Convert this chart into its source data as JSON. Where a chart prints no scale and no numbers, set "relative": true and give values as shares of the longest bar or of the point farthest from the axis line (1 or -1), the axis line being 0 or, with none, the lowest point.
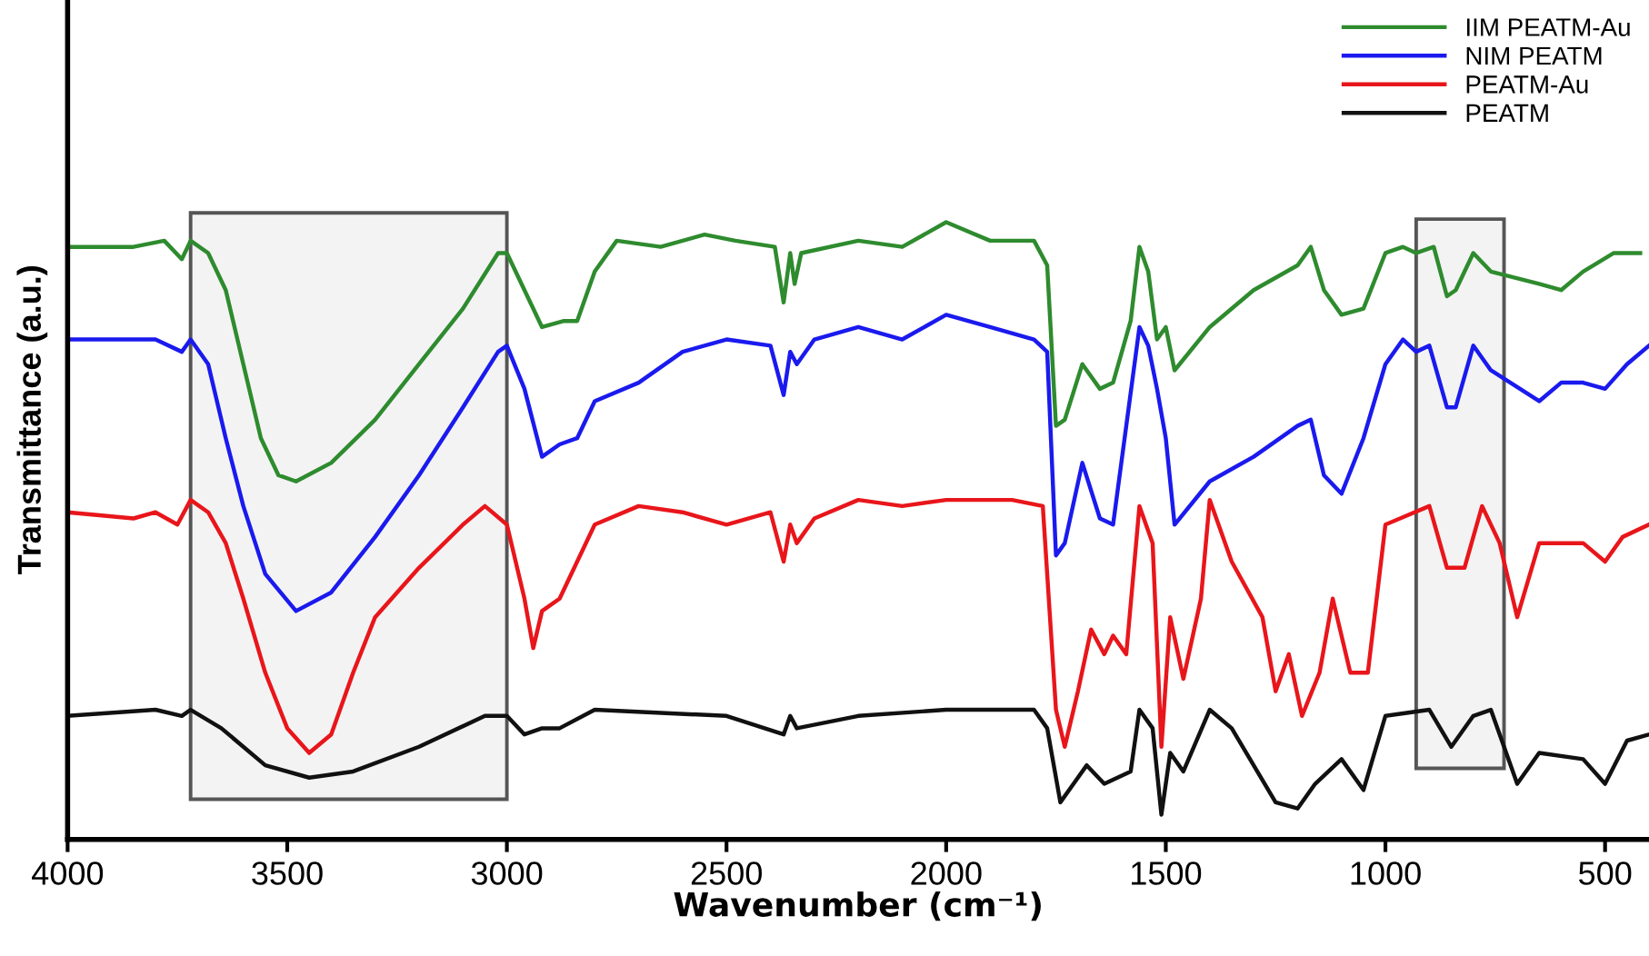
{
  "chart_data": {
    "type": "line",
    "relative": true,
    "xlabel": "Wavenumber (cm⁻¹)",
    "ylabel": "Transmittance (a.u.)",
    "xlim": [
      4000,
      400
    ],
    "xticks": [
      4000,
      3500,
      3000,
      2500,
      2000,
      1500,
      1000,
      500
    ],
    "grid": false,
    "legend": "top right",
    "line_style": "solid",
    "marker": "none",
    "bands": [
      {
        "axis": "x",
        "from": 3720,
        "to": 3000,
        "color": "#555555"
      },
      {
        "axis": "x",
        "from": 930,
        "to": 730,
        "color": "#555555"
      }
    ],
    "series": [
      {
        "name": "IIM PEATM-Au",
        "color": "#2e8b2e",
        "x": [
          4000,
          3850,
          3780,
          3740,
          3720,
          3680,
          3640,
          3600,
          3560,
          3520,
          3480,
          3400,
          3300,
          3200,
          3100,
          3020,
          3000,
          2960,
          2920,
          2870,
          2840,
          2800,
          2750,
          2650,
          2550,
          2480,
          2390,
          2370,
          2355,
          2345,
          2330,
          2200,
          2100,
          2000,
          1900,
          1800,
          1770,
          1750,
          1730,
          1690,
          1650,
          1620,
          1580,
          1560,
          1540,
          1520,
          1500,
          1480,
          1400,
          1300,
          1200,
          1170,
          1140,
          1100,
          1050,
          1000,
          960,
          930,
          890,
          860,
          840,
          800,
          760,
          650,
          600,
          550,
          480,
          420
        ],
        "values": [
          0.96,
          0.96,
          0.97,
          0.94,
          0.97,
          0.95,
          0.89,
          0.77,
          0.65,
          0.59,
          0.58,
          0.61,
          0.68,
          0.77,
          0.86,
          0.95,
          0.95,
          0.89,
          0.83,
          0.84,
          0.84,
          0.92,
          0.97,
          0.96,
          0.98,
          0.97,
          0.96,
          0.87,
          0.95,
          0.9,
          0.95,
          0.97,
          0.96,
          1.0,
          0.97,
          0.97,
          0.93,
          0.67,
          0.68,
          0.77,
          0.73,
          0.74,
          0.84,
          0.96,
          0.92,
          0.81,
          0.83,
          0.76,
          0.83,
          0.89,
          0.93,
          0.96,
          0.89,
          0.85,
          0.86,
          0.95,
          0.96,
          0.95,
          0.96,
          0.88,
          0.89,
          0.95,
          0.92,
          0.9,
          0.89,
          0.92,
          0.95,
          0.95
        ]
      },
      {
        "name": "NIM PEATM",
        "color": "#1a1aee",
        "x": [
          4000,
          3800,
          3740,
          3720,
          3680,
          3640,
          3600,
          3550,
          3480,
          3400,
          3300,
          3200,
          3100,
          3020,
          3000,
          2960,
          2920,
          2880,
          2840,
          2800,
          2700,
          2600,
          2500,
          2400,
          2370,
          2355,
          2340,
          2300,
          2200,
          2100,
          2000,
          1900,
          1800,
          1770,
          1750,
          1730,
          1690,
          1650,
          1620,
          1560,
          1540,
          1520,
          1500,
          1480,
          1400,
          1300,
          1200,
          1170,
          1140,
          1100,
          1050,
          1000,
          960,
          930,
          900,
          860,
          840,
          800,
          760,
          650,
          600,
          550,
          500,
          450,
          400
        ],
        "values": [
          0.81,
          0.81,
          0.79,
          0.81,
          0.77,
          0.65,
          0.54,
          0.43,
          0.37,
          0.4,
          0.49,
          0.59,
          0.7,
          0.79,
          0.8,
          0.73,
          0.62,
          0.64,
          0.65,
          0.71,
          0.74,
          0.79,
          0.81,
          0.8,
          0.72,
          0.79,
          0.77,
          0.81,
          0.83,
          0.81,
          0.85,
          0.83,
          0.81,
          0.79,
          0.46,
          0.48,
          0.61,
          0.52,
          0.51,
          0.83,
          0.8,
          0.73,
          0.65,
          0.51,
          0.58,
          0.62,
          0.67,
          0.68,
          0.59,
          0.56,
          0.65,
          0.77,
          0.81,
          0.79,
          0.8,
          0.7,
          0.7,
          0.8,
          0.76,
          0.71,
          0.74,
          0.74,
          0.73,
          0.77,
          0.8
        ]
      },
      {
        "name": "PEATM-Au",
        "color": "#e8161b",
        "x": [
          4000,
          3850,
          3800,
          3750,
          3720,
          3680,
          3640,
          3600,
          3550,
          3500,
          3450,
          3400,
          3350,
          3300,
          3200,
          3100,
          3050,
          3000,
          2960,
          2940,
          2920,
          2880,
          2840,
          2800,
          2700,
          2600,
          2500,
          2400,
          2370,
          2355,
          2340,
          2300,
          2200,
          2100,
          2000,
          1850,
          1780,
          1750,
          1730,
          1700,
          1670,
          1640,
          1620,
          1590,
          1560,
          1530,
          1510,
          1490,
          1460,
          1420,
          1400,
          1350,
          1280,
          1250,
          1220,
          1190,
          1150,
          1120,
          1080,
          1040,
          1000,
          900,
          860,
          820,
          780,
          740,
          700,
          650,
          550,
          500,
          460,
          400
        ],
        "values": [
          0.53,
          0.52,
          0.53,
          0.51,
          0.55,
          0.53,
          0.48,
          0.39,
          0.27,
          0.18,
          0.14,
          0.17,
          0.27,
          0.36,
          0.44,
          0.51,
          0.54,
          0.51,
          0.39,
          0.31,
          0.37,
          0.39,
          0.45,
          0.51,
          0.54,
          0.53,
          0.51,
          0.53,
          0.45,
          0.51,
          0.48,
          0.52,
          0.55,
          0.54,
          0.55,
          0.55,
          0.54,
          0.21,
          0.15,
          0.24,
          0.34,
          0.3,
          0.33,
          0.3,
          0.54,
          0.48,
          0.15,
          0.36,
          0.26,
          0.39,
          0.55,
          0.45,
          0.36,
          0.24,
          0.3,
          0.2,
          0.27,
          0.39,
          0.27,
          0.27,
          0.51,
          0.54,
          0.44,
          0.44,
          0.54,
          0.48,
          0.36,
          0.48,
          0.48,
          0.45,
          0.49,
          0.51
        ]
      },
      {
        "name": "PEATM",
        "color": "#111111",
        "x": [
          4000,
          3800,
          3740,
          3720,
          3650,
          3550,
          3450,
          3350,
          3200,
          3050,
          3000,
          2960,
          2920,
          2880,
          2800,
          2500,
          2370,
          2355,
          2340,
          2200,
          2000,
          1800,
          1770,
          1740,
          1710,
          1680,
          1640,
          1580,
          1560,
          1530,
          1510,
          1490,
          1460,
          1400,
          1350,
          1250,
          1200,
          1160,
          1100,
          1050,
          1000,
          900,
          850,
          800,
          760,
          700,
          650,
          550,
          500,
          450,
          400
        ],
        "values": [
          0.2,
          0.21,
          0.2,
          0.21,
          0.18,
          0.12,
          0.1,
          0.11,
          0.15,
          0.2,
          0.2,
          0.17,
          0.18,
          0.18,
          0.21,
          0.2,
          0.17,
          0.2,
          0.18,
          0.2,
          0.21,
          0.21,
          0.18,
          0.06,
          0.09,
          0.12,
          0.09,
          0.11,
          0.21,
          0.18,
          0.04,
          0.14,
          0.11,
          0.21,
          0.18,
          0.06,
          0.05,
          0.09,
          0.13,
          0.08,
          0.2,
          0.21,
          0.15,
          0.2,
          0.21,
          0.09,
          0.14,
          0.13,
          0.09,
          0.16,
          0.17
        ]
      }
    ]
  }
}
